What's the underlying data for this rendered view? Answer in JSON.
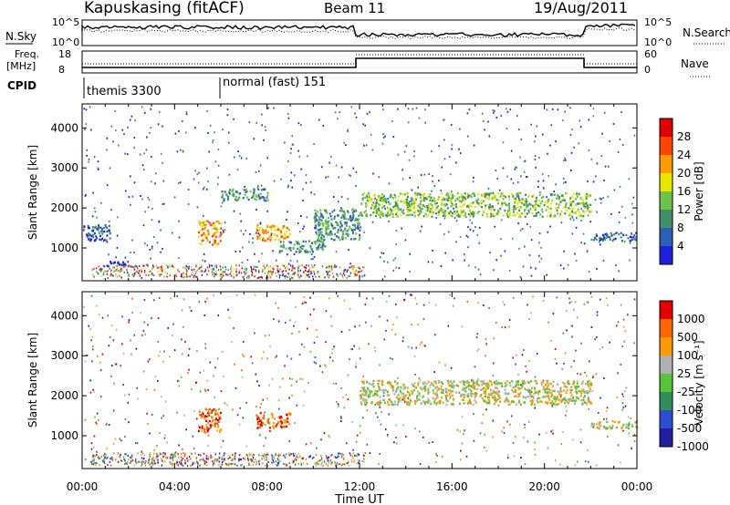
{
  "header": {
    "station": "Kapuskasing (fitACF)",
    "beam": "Beam 11",
    "date": "19/Aug/2011"
  },
  "status_labels": {
    "nsky": "N.Sky",
    "nsearch": "N.Search",
    "freq_line1": "Freq.",
    "freq_line2": "[MHz]",
    "nave": "Nave",
    "cpid": "CPID",
    "noise_tick_top": "10^5",
    "noise_tick_bottom": "10^0",
    "noise_right_top": "10^5",
    "noise_right_bottom": "10^0",
    "freq_tick_top": "18",
    "freq_tick_bottom": "8",
    "nave_tick_top": "60",
    "nave_tick_bottom": "0"
  },
  "cpid_segments": [
    {
      "label": "themis 3300",
      "start_hour": 0.0
    },
    {
      "label": "normal (fast) 151",
      "start_hour": 6.0
    }
  ],
  "chart_data": [
    {
      "type": "heatmap",
      "panel": "power",
      "ylabel": "Slant Range [km]",
      "xlim_hours": [
        0,
        24
      ],
      "ylim_km": [
        180,
        4600
      ],
      "yticks": [
        "1000",
        "2000",
        "3000",
        "4000"
      ],
      "colorbar_label": "Power [dB]",
      "colorbar_ticks": [
        "4",
        "8",
        "12",
        "16",
        "20",
        "24",
        "28"
      ],
      "colorbar_colors": [
        "#1f1fe0",
        "#2b5fb8",
        "#3f8f6a",
        "#6cc24a",
        "#e6e600",
        "#ff9900",
        "#ff4400",
        "#e00000"
      ],
      "features": [
        {
          "x_hours": [
            0.0,
            1.2
          ],
          "y_km": [
            1200,
            1600
          ],
          "level": 1
        },
        {
          "x_hours": [
            1.0,
            2.0
          ],
          "y_km": [
            560,
            700
          ],
          "level": 0
        },
        {
          "x_hours": [
            5.0,
            6.0
          ],
          "y_km": [
            1100,
            1700
          ],
          "level": 5
        },
        {
          "x_hours": [
            6.0,
            8.0
          ],
          "y_km": [
            2200,
            2500
          ],
          "level": 2
        },
        {
          "x_hours": [
            7.5,
            9.0
          ],
          "y_km": [
            1200,
            1600
          ],
          "level": 5
        },
        {
          "x_hours": [
            8.5,
            10.5
          ],
          "y_km": [
            900,
            1200
          ],
          "level": 2
        },
        {
          "x_hours": [
            10.0,
            12.0
          ],
          "y_km": [
            1200,
            2000
          ],
          "level": 2
        },
        {
          "x_hours": [
            12.0,
            22.0
          ],
          "y_km": [
            1800,
            2400
          ],
          "level": 3
        },
        {
          "x_hours": [
            22.0,
            24.0
          ],
          "y_km": [
            1200,
            1400
          ],
          "level": 1
        }
      ]
    },
    {
      "type": "heatmap",
      "panel": "velocity",
      "ylabel": "Slant Range [km]",
      "xlabel": "Time UT",
      "xlim_hours": [
        0,
        24
      ],
      "ylim_km": [
        180,
        4600
      ],
      "xticks": [
        "00:00",
        "04:00",
        "08:00",
        "12:00",
        "16:00",
        "20:00",
        "00:00"
      ],
      "yticks": [
        "1000",
        "2000",
        "3000",
        "4000"
      ],
      "colorbar_label": "Velocity [m s⁻¹]",
      "colorbar_ticks": [
        "1000",
        "500",
        "100",
        "25",
        "-25",
        "-100",
        "-500",
        "-1000"
      ],
      "colorbar_colors": [
        "#1f1fa0",
        "#2b4fd0",
        "#2f8f5a",
        "#57c43a",
        "#b0b0b0",
        "#ff9900",
        "#ff6600",
        "#e00000"
      ],
      "features": [
        {
          "x_hours": [
            5.0,
            6.0
          ],
          "y_km": [
            1100,
            1700
          ],
          "level": 6
        },
        {
          "x_hours": [
            7.5,
            9.0
          ],
          "y_km": [
            1200,
            1600
          ],
          "level": 6
        },
        {
          "x_hours": [
            12.0,
            22.0
          ],
          "y_km": [
            1800,
            2400
          ],
          "level": 4
        },
        {
          "x_hours": [
            22.0,
            24.0
          ],
          "y_km": [
            1200,
            1400
          ],
          "level": 4
        }
      ]
    }
  ]
}
